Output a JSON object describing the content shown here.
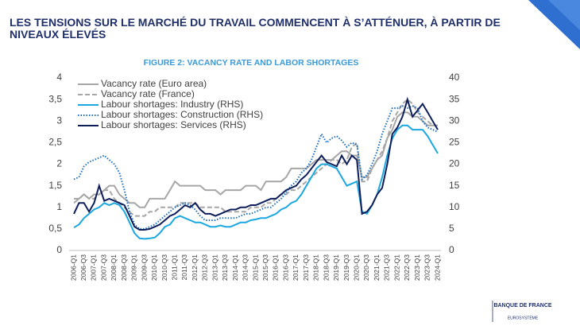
{
  "header": {
    "title": "LES TENSIONS SUR LE MARCHÉ DU TRAVAIL COMMENCENT À S’ATTÉNUER, À PARTIR DE NIVEAUX ÉLEVÉS"
  },
  "chart_data": {
    "type": "line",
    "title": "FIGURE 2: VACANCY RATE AND LABOR SHORTAGES",
    "categories": [
      "2006-Q1",
      null,
      "2006-Q3",
      null,
      "2007-Q1",
      null,
      "2007-Q3",
      null,
      "2008-Q1",
      null,
      "2008-Q3",
      null,
      "2009-Q1",
      null,
      "2009-Q3",
      null,
      "2010-Q1",
      null,
      "2010-Q3",
      null,
      "2011-Q1",
      null,
      "2011-Q3",
      null,
      "2012-Q1",
      null,
      "2012-Q3",
      null,
      "2013-Q1",
      null,
      "2013-Q3",
      null,
      "2014-Q1",
      null,
      "2014-Q3",
      null,
      "2015-Q1",
      null,
      "2015-Q3",
      null,
      "2016-Q1",
      null,
      "2016-Q3",
      null,
      "2017-Q1",
      null,
      "2017-Q3",
      null,
      "2018-Q1",
      null,
      "2018-Q3",
      null,
      "2019-Q1",
      null,
      "2019-Q3",
      null,
      "2020-Q1",
      null,
      "2020-Q3",
      null,
      "2021-Q1",
      null,
      "2021-Q3",
      null,
      "2022-Q1",
      null,
      "2022-Q3",
      null,
      "2023-Q1",
      null,
      "2023-Q3",
      null,
      "2024-Q1"
    ],
    "series": [
      {
        "name": "Vacancy rate (Euro area)",
        "color": "#a6a6a6",
        "dash": "solid",
        "axis": "y",
        "values": [
          1.1,
          1.2,
          1.3,
          1.2,
          1.3,
          1.3,
          1.4,
          1.5,
          1.5,
          1.3,
          1.2,
          1.1,
          1.1,
          1.0,
          1.0,
          1.2,
          1.2,
          1.2,
          1.2,
          1.4,
          1.6,
          1.5,
          1.5,
          1.5,
          1.5,
          1.5,
          1.4,
          1.4,
          1.4,
          1.3,
          1.4,
          1.4,
          1.4,
          1.4,
          1.5,
          1.5,
          1.5,
          1.4,
          1.6,
          1.6,
          1.6,
          1.6,
          1.7,
          1.9,
          1.9,
          1.9,
          1.9,
          2.0,
          2.1,
          2.1,
          2.1,
          2.1,
          2.2,
          2.3,
          2.3,
          2.2,
          2.2,
          1.7,
          1.7,
          1.9,
          2.1,
          2.2,
          2.6,
          2.8,
          3.1,
          3.2,
          3.2,
          3.1,
          3.1,
          3.0,
          2.9,
          2.9,
          2.9
        ]
      },
      {
        "name": "Vacancy rate (France)",
        "color": "#a6a6a6",
        "dash": "dashed",
        "axis": "y",
        "values": [
          1.2,
          1.2,
          1.3,
          1.2,
          1.2,
          1.3,
          1.4,
          1.4,
          1.2,
          1.1,
          1.0,
          0.9,
          0.8,
          0.8,
          0.8,
          0.9,
          0.9,
          1.0,
          1.0,
          1.0,
          1.0,
          1.1,
          1.1,
          1.1,
          1.1,
          1.0,
          1.0,
          1.0,
          1.0,
          1.0,
          0.9,
          0.9,
          0.9,
          0.9,
          0.9,
          1.0,
          1.0,
          1.0,
          1.1,
          1.1,
          1.2,
          1.3,
          1.3,
          1.4,
          1.4,
          1.5,
          1.6,
          1.7,
          1.8,
          1.9,
          2.0,
          2.1,
          2.1,
          2.0,
          2.1,
          2.4,
          2.5,
          1.6,
          1.6,
          1.9,
          2.1,
          2.3,
          2.6,
          3.0,
          3.2,
          3.4,
          3.5,
          3.4,
          3.2,
          3.1,
          3.0,
          2.9,
          2.9
        ]
      },
      {
        "name": "Labour shortages: Industry (RHS)",
        "color": "#1ba8e0",
        "dash": "solid",
        "axis": "y2",
        "values": [
          5.3,
          6,
          7.5,
          8.5,
          9.5,
          10,
          11,
          10.5,
          11,
          10.5,
          9,
          6.5,
          4,
          2.8,
          2.7,
          2.8,
          3,
          4,
          5.5,
          6,
          7.5,
          8,
          7.5,
          7,
          6.5,
          6.5,
          6,
          5.5,
          5.5,
          5.8,
          5.5,
          5.5,
          6,
          6.5,
          6.5,
          7,
          7.2,
          7.5,
          7.5,
          8,
          8.5,
          9.5,
          10,
          11,
          11.5,
          13,
          15,
          17,
          19,
          20,
          20,
          19.5,
          19,
          17,
          15,
          15.5,
          16,
          9,
          8.5,
          10.5,
          13,
          17,
          22,
          26,
          28,
          29,
          29,
          28,
          28,
          28,
          26.5,
          24.5,
          22.5
        ]
      },
      {
        "name": "Labour shortages: Construction (RHS)",
        "color": "#1e6fc1",
        "dash": "dotted",
        "axis": "y2",
        "values": [
          16.5,
          17,
          19.5,
          20.5,
          21,
          21.5,
          22,
          21,
          20,
          18,
          14,
          9,
          6,
          5,
          5,
          5.5,
          6,
          7,
          8,
          9,
          10,
          10.5,
          11,
          10.5,
          9.5,
          8,
          7,
          7,
          7,
          7.5,
          7.5,
          7.5,
          7.5,
          8,
          8.5,
          8.5,
          9,
          9.5,
          10,
          10,
          11,
          12,
          13.5,
          15,
          16,
          18,
          19,
          21,
          24,
          27,
          25,
          26,
          26.5,
          25.5,
          24,
          25,
          24.5,
          16.5,
          17.5,
          20,
          23,
          27,
          30,
          33,
          33,
          33.5,
          33,
          33.5,
          33,
          30,
          28.5,
          28,
          27.5
        ]
      },
      {
        "name": "Labour shortages: Services (RHS)",
        "color": "#0e1e5b",
        "dash": "solid",
        "axis": "y2",
        "values": [
          8.5,
          11,
          11,
          9,
          11,
          15,
          11.5,
          12,
          11.5,
          11,
          10.5,
          8,
          5.5,
          4.8,
          4.8,
          5,
          5.5,
          6,
          7,
          8,
          8.5,
          9.5,
          10.5,
          10,
          11,
          9.5,
          8.5,
          8.5,
          8,
          8.5,
          9,
          9.5,
          9.5,
          10,
          10,
          10.5,
          10.5,
          11,
          11.5,
          12,
          12,
          13,
          14,
          14.5,
          15,
          16.5,
          17.5,
          19,
          20.5,
          22,
          20.5,
          20,
          19.5,
          22,
          20,
          22,
          21,
          8.5,
          9,
          10.5,
          13,
          14.5,
          20,
          27,
          28.5,
          31,
          35,
          31,
          32.5,
          34,
          32,
          30,
          28
        ]
      }
    ],
    "ylim": [
      0,
      4
    ],
    "yticks": [
      0,
      {
        "value": 0.5,
        "label": "0,5"
      },
      1,
      {
        "value": 1.5,
        "label": "1,5"
      },
      2,
      {
        "value": 2.5,
        "label": "2,5"
      },
      3,
      {
        "value": 3.5,
        "label": "3,5"
      },
      4
    ],
    "y2lim": [
      0,
      40
    ],
    "y2ticks": [
      0,
      5,
      10,
      15,
      20,
      25,
      30,
      35,
      40
    ],
    "grid": false,
    "legend": "upper left"
  },
  "logo": {
    "name": "BANQUE DE FRANCE",
    "sub": "EUROSYSTÈME"
  }
}
